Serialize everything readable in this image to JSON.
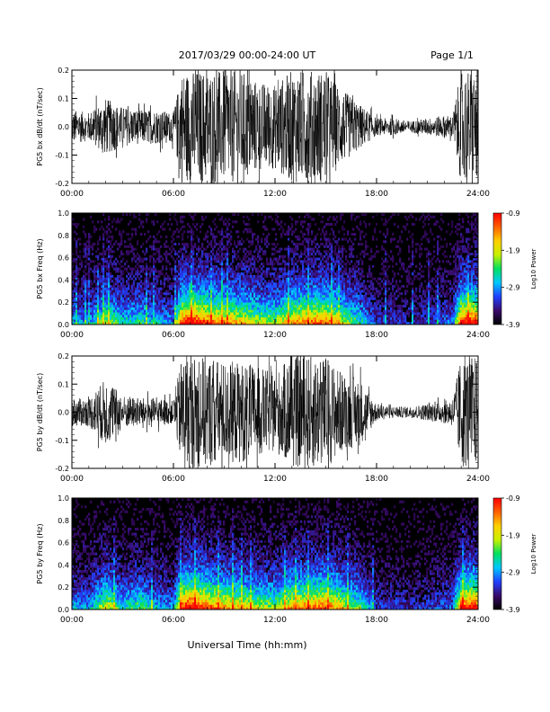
{
  "header": {
    "title": "2017/03/29  00:00-24:00 UT",
    "page": "Page 1/1"
  },
  "footer": {
    "xlabel": "Universal Time (hh:mm)"
  },
  "colorbar": {
    "label": "Log10 Power",
    "ticks": [
      "-0.9",
      "-1.9",
      "-2.9",
      "-3.9"
    ],
    "range": [
      -3.9,
      -0.9
    ],
    "colors": [
      "#000000",
      "#3a0a6a",
      "#2040ff",
      "#00c8ff",
      "#00e060",
      "#c8f000",
      "#ffd000",
      "#ff6000",
      "#ff0000"
    ]
  },
  "chart_data": [
    {
      "type": "line",
      "ylabel": "PG5 bx dB/dt (nT/sec)",
      "xlim": [
        0,
        24
      ],
      "ylim": [
        -0.2,
        0.2
      ],
      "xticks": [
        "00:00",
        "06:00",
        "12:00",
        "18:00",
        "24:00"
      ],
      "yticks": [
        "0.2",
        "0.1",
        "0.0",
        "-0.1",
        "-0.2"
      ],
      "envelope": {
        "hours": [
          0,
          1,
          2,
          3,
          4,
          5,
          6,
          6.5,
          7,
          8,
          9,
          10,
          11,
          12,
          13,
          14,
          15,
          16,
          17,
          18,
          19,
          20,
          21,
          22,
          22.5,
          23,
          23.5,
          24
        ],
        "amplitude": [
          0.06,
          0.05,
          0.1,
          0.07,
          0.06,
          0.06,
          0.05,
          0.2,
          0.2,
          0.2,
          0.2,
          0.2,
          0.16,
          0.15,
          0.2,
          0.2,
          0.2,
          0.13,
          0.08,
          0.03,
          0.03,
          0.02,
          0.03,
          0.04,
          0.04,
          0.2,
          0.2,
          0.2
        ]
      },
      "color": "#000000"
    },
    {
      "type": "heatmap",
      "ylabel": "PG5 bx Freq (Hz)",
      "xlim": [
        0,
        24
      ],
      "ylim": [
        0,
        1.0
      ],
      "xticks": [
        "00:00",
        "06:00",
        "12:00",
        "18:00",
        "24:00"
      ],
      "yticks": [
        "1.0",
        "0.8",
        "0.6",
        "0.4",
        "0.2",
        "0.0"
      ],
      "activity": {
        "hours": [
          0,
          1,
          2,
          3,
          4,
          5,
          6,
          6.5,
          7,
          8,
          9,
          10,
          11,
          12,
          13,
          14,
          15,
          16,
          17,
          18,
          19,
          20,
          21,
          22,
          22.5,
          23,
          23.5,
          24
        ],
        "level": [
          0.35,
          0.3,
          0.6,
          0.4,
          0.45,
          0.35,
          0.3,
          0.9,
          1.0,
          0.85,
          0.75,
          0.7,
          0.6,
          0.55,
          0.75,
          0.8,
          0.85,
          0.6,
          0.45,
          0.2,
          0.2,
          0.15,
          0.2,
          0.25,
          0.25,
          0.9,
          0.95,
          0.9
        ]
      }
    },
    {
      "type": "line",
      "ylabel": "PG5 by dB/dt (nT/sec)",
      "xlim": [
        0,
        24
      ],
      "ylim": [
        -0.2,
        0.2
      ],
      "xticks": [
        "00:00",
        "06:00",
        "12:00",
        "18:00",
        "24:00"
      ],
      "yticks": [
        "0.2",
        "0.1",
        "0.0",
        "-0.1",
        "-0.2"
      ],
      "envelope": {
        "hours": [
          0,
          1,
          2,
          3,
          4,
          5,
          6,
          6.5,
          7,
          8,
          9,
          10,
          11,
          12,
          13,
          14,
          15,
          16,
          17,
          18,
          19,
          20,
          21,
          22,
          22.5,
          23,
          23.5,
          24
        ],
        "amplitude": [
          0.05,
          0.05,
          0.12,
          0.06,
          0.05,
          0.05,
          0.04,
          0.2,
          0.2,
          0.2,
          0.18,
          0.18,
          0.16,
          0.14,
          0.2,
          0.2,
          0.2,
          0.14,
          0.12,
          0.03,
          0.02,
          0.02,
          0.03,
          0.04,
          0.05,
          0.2,
          0.2,
          0.2
        ]
      },
      "color": "#000000"
    },
    {
      "type": "heatmap",
      "ylabel": "PG5 by Freq (Hz)",
      "xlim": [
        0,
        24
      ],
      "ylim": [
        0,
        1.0
      ],
      "xticks": [
        "00:00",
        "06:00",
        "12:00",
        "18:00",
        "24:00"
      ],
      "yticks": [
        "1.0",
        "0.8",
        "0.6",
        "0.4",
        "0.2",
        "0.0"
      ],
      "activity": {
        "hours": [
          0,
          1,
          2,
          3,
          4,
          5,
          6,
          6.5,
          7,
          8,
          9,
          10,
          11,
          12,
          13,
          14,
          15,
          16,
          17,
          18,
          19,
          20,
          21,
          22,
          22.5,
          23,
          23.5,
          24
        ],
        "level": [
          0.35,
          0.3,
          0.65,
          0.4,
          0.5,
          0.35,
          0.3,
          0.9,
          1.0,
          0.85,
          0.75,
          0.7,
          0.6,
          0.55,
          0.75,
          0.8,
          0.85,
          0.65,
          0.5,
          0.2,
          0.2,
          0.15,
          0.2,
          0.25,
          0.25,
          0.9,
          0.95,
          0.9
        ]
      }
    }
  ]
}
